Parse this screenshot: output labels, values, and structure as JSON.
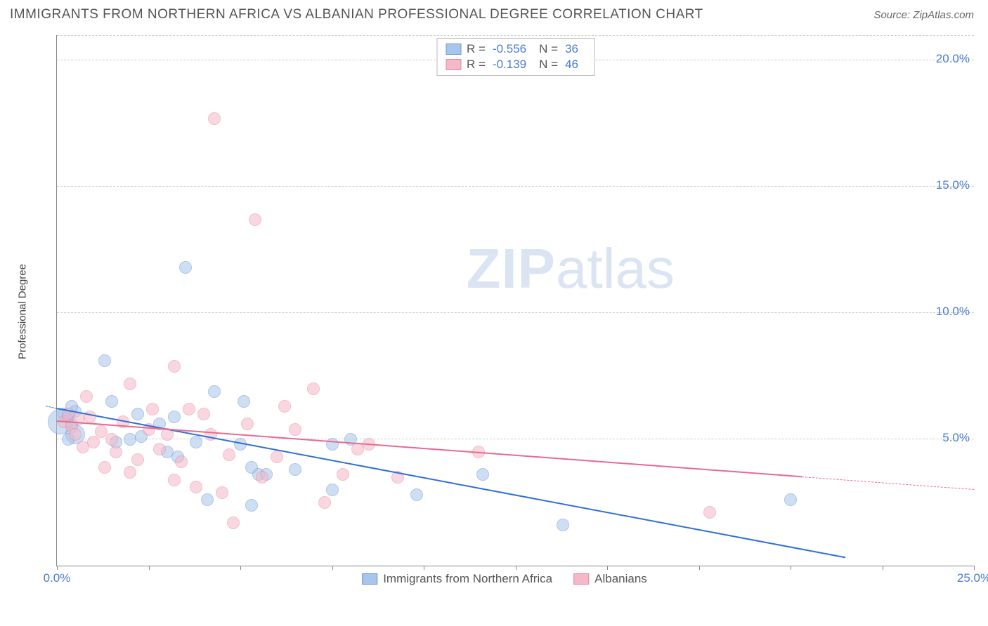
{
  "header": {
    "title": "IMMIGRANTS FROM NORTHERN AFRICA VS ALBANIAN PROFESSIONAL DEGREE CORRELATION CHART",
    "source": "Source: ZipAtlas.com"
  },
  "chart": {
    "type": "scatter",
    "y_label": "Professional Degree",
    "xlim": [
      0,
      25
    ],
    "ylim": [
      0,
      21
    ],
    "x_ticks": [
      0,
      2.5,
      5,
      7.5,
      10,
      12.5,
      15,
      17.5,
      20,
      22.5,
      25
    ],
    "x_tick_labels": {
      "0": "0.0%",
      "25": "25.0%"
    },
    "y_gridlines": [
      5,
      10,
      15,
      20
    ],
    "y_tick_labels": {
      "5": "5.0%",
      "10": "10.0%",
      "15": "15.0%",
      "20": "20.0%"
    },
    "background_color": "#ffffff",
    "grid_color": "#cccccc",
    "axis_color": "#888888",
    "tick_label_color": "#4a7bd0",
    "watermark": "ZIPatlas",
    "series": [
      {
        "name": "Immigrants from Northern Africa",
        "fill": "#a8c5eb",
        "stroke": "#6a96d6",
        "fill_opacity": 0.55,
        "marker_radius": 9,
        "R": "-0.556",
        "N": "36",
        "trend": {
          "x1": 0,
          "y1": 6.2,
          "x2": 21.5,
          "y2": 0.3,
          "color": "#2e6fd9",
          "width": 2
        },
        "trend_dash": {
          "x1": -0.3,
          "y1": 6.3,
          "x2": 0,
          "y2": 6.2,
          "color": "#2e6fd9"
        },
        "points": [
          [
            0.1,
            5.7,
            18
          ],
          [
            0.2,
            6.0,
            9
          ],
          [
            0.3,
            5.9,
            9
          ],
          [
            0.4,
            5.6,
            9
          ],
          [
            0.5,
            6.1,
            9
          ],
          [
            0.5,
            5.2,
            14
          ],
          [
            0.3,
            5.0,
            9
          ],
          [
            0.4,
            6.3,
            9
          ],
          [
            1.3,
            8.1,
            9
          ],
          [
            1.5,
            6.5,
            9
          ],
          [
            1.6,
            4.9,
            9
          ],
          [
            2.0,
            5.0,
            9
          ],
          [
            2.2,
            6.0,
            9
          ],
          [
            2.3,
            5.1,
            9
          ],
          [
            2.8,
            5.6,
            9
          ],
          [
            3.0,
            4.5,
            9
          ],
          [
            3.2,
            5.9,
            9
          ],
          [
            3.3,
            4.3,
            9
          ],
          [
            3.5,
            11.8,
            9
          ],
          [
            3.8,
            4.9,
            9
          ],
          [
            4.1,
            2.6,
            9
          ],
          [
            4.3,
            6.9,
            9
          ],
          [
            5.0,
            4.8,
            9
          ],
          [
            5.1,
            6.5,
            9
          ],
          [
            5.3,
            2.4,
            9
          ],
          [
            5.3,
            3.9,
            9
          ],
          [
            5.5,
            3.6,
            9
          ],
          [
            5.7,
            3.6,
            9
          ],
          [
            6.5,
            3.8,
            9
          ],
          [
            7.5,
            4.8,
            9
          ],
          [
            7.5,
            3.0,
            9
          ],
          [
            8.0,
            5.0,
            9
          ],
          [
            9.8,
            2.8,
            9
          ],
          [
            11.6,
            3.6,
            9
          ],
          [
            13.8,
            1.6,
            9
          ],
          [
            20.0,
            2.6,
            9
          ]
        ]
      },
      {
        "name": "Albanians",
        "fill": "#f5b8c8",
        "stroke": "#e888a4",
        "fill_opacity": 0.55,
        "marker_radius": 9,
        "R": "-0.139",
        "N": "46",
        "trend": {
          "x1": 0,
          "y1": 5.7,
          "x2": 20.3,
          "y2": 3.5,
          "color": "#e86a8f",
          "width": 2
        },
        "trend_dash": {
          "x1": 20.3,
          "y1": 3.5,
          "x2": 25,
          "y2": 3.0,
          "color": "#e86a8f"
        },
        "points": [
          [
            0.2,
            5.7,
            9
          ],
          [
            0.3,
            6.0,
            9
          ],
          [
            0.4,
            5.5,
            9
          ],
          [
            0.6,
            5.8,
            9
          ],
          [
            0.8,
            6.7,
            9
          ],
          [
            0.5,
            5.2,
            9
          ],
          [
            0.7,
            4.7,
            9
          ],
          [
            0.9,
            5.9,
            9
          ],
          [
            1.0,
            4.9,
            9
          ],
          [
            1.2,
            5.3,
            9
          ],
          [
            1.3,
            3.9,
            9
          ],
          [
            1.5,
            5.0,
            9
          ],
          [
            1.6,
            4.5,
            9
          ],
          [
            1.8,
            5.7,
            9
          ],
          [
            2.0,
            3.7,
            9
          ],
          [
            2.0,
            7.2,
            9
          ],
          [
            2.2,
            4.2,
            9
          ],
          [
            2.5,
            5.4,
            9
          ],
          [
            2.6,
            6.2,
            9
          ],
          [
            2.8,
            4.6,
            9
          ],
          [
            3.0,
            5.2,
            9
          ],
          [
            3.2,
            7.9,
            9
          ],
          [
            3.2,
            3.4,
            9
          ],
          [
            3.4,
            4.1,
            9
          ],
          [
            3.6,
            6.2,
            9
          ],
          [
            3.8,
            3.1,
            9
          ],
          [
            4.0,
            6.0,
            9
          ],
          [
            4.2,
            5.2,
            9
          ],
          [
            4.3,
            17.7,
            9
          ],
          [
            4.5,
            2.9,
            9
          ],
          [
            4.7,
            4.4,
            9
          ],
          [
            4.8,
            1.7,
            9
          ],
          [
            5.2,
            5.6,
            9
          ],
          [
            5.4,
            13.7,
            9
          ],
          [
            5.6,
            3.5,
            9
          ],
          [
            6.0,
            4.3,
            9
          ],
          [
            6.2,
            6.3,
            9
          ],
          [
            6.5,
            5.4,
            9
          ],
          [
            7.0,
            7.0,
            9
          ],
          [
            7.3,
            2.5,
            9
          ],
          [
            7.8,
            3.6,
            9
          ],
          [
            8.2,
            4.6,
            9
          ],
          [
            8.5,
            4.8,
            9
          ],
          [
            9.3,
            3.5,
            9
          ],
          [
            11.5,
            4.5,
            9
          ],
          [
            17.8,
            2.1,
            9
          ]
        ]
      }
    ],
    "legend_bottom": [
      {
        "label": "Immigrants from Northern Africa",
        "fill": "#a8c5eb",
        "stroke": "#6a96d6"
      },
      {
        "label": "Albanians",
        "fill": "#f5b8c8",
        "stroke": "#e888a4"
      }
    ]
  }
}
